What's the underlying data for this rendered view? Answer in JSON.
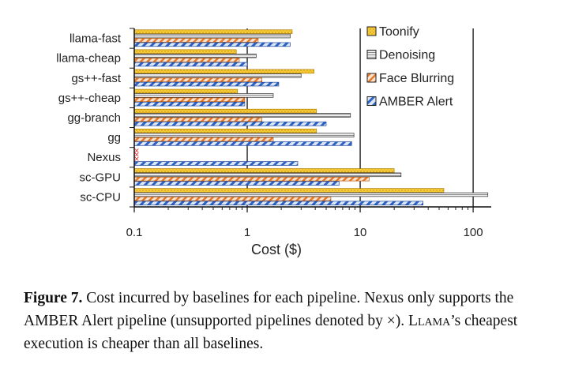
{
  "chart_data": {
    "type": "bar",
    "orientation": "horizontal",
    "xscale": "log",
    "xlim": [
      0.1,
      140
    ],
    "xlabel": "Cost ($)",
    "xticks": [
      0.1,
      1,
      10,
      100
    ],
    "xtick_labels": [
      "0.1",
      "1",
      "10",
      "100"
    ],
    "categories": [
      "llama-fast",
      "llama-cheap",
      "gs++-fast",
      "gs++-cheap",
      "gg-branch",
      "gg",
      "Nexus",
      "sc-GPU",
      "sc-CPU"
    ],
    "series": [
      {
        "name": "Toonify",
        "values": [
          2.5,
          0.8,
          3.9,
          0.82,
          4.1,
          4.1,
          null,
          20,
          55
        ],
        "color": "#f0c419",
        "pattern": "dots"
      },
      {
        "name": "Denoising",
        "values": [
          2.4,
          1.2,
          3.0,
          1.7,
          8.2,
          8.8,
          null,
          23,
          135
        ],
        "color": "#d8d8d8",
        "pattern": "lines"
      },
      {
        "name": "Face Blurring",
        "values": [
          1.25,
          0.85,
          1.35,
          0.95,
          1.35,
          1.7,
          null,
          12,
          5.5
        ],
        "color": "#f08a3c",
        "pattern": "hatch"
      },
      {
        "name": "AMBER Alert",
        "values": [
          2.4,
          1.0,
          1.9,
          0.95,
          5.0,
          8.4,
          2.8,
          6.5,
          36
        ],
        "color": "#3a6fd1",
        "pattern": "hatch"
      }
    ],
    "unsupported_marker": "×",
    "legend_position": "top-right",
    "grid": "major x"
  },
  "caption": {
    "label": "Figure 7.",
    "text_1": " Cost incurred by baselines for each pipeline. Nexus only supports the AMBER Alert pipeline (unsupported pipelines denoted by ×). ",
    "smallcaps": "Llama",
    "text_2": "’s cheapest execution is cheaper than all baselines."
  }
}
